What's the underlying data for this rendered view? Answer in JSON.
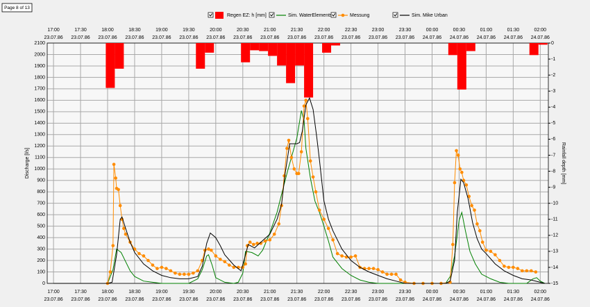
{
  "page_label": "Page 8 of 13",
  "chart_data": {
    "type": "line",
    "ylabel": "Discharge [l/s]",
    "y2label": "Rainfall depth [mm]",
    "xlim": [
      "23.07.86 16:53",
      "24.07.86 02:09"
    ],
    "xticks": [
      {
        "value": "23.07.86 17:00",
        "label": [
          "17:00",
          "23.07.86"
        ]
      },
      {
        "value": "23.07.86 17:30",
        "label": [
          "17:30",
          "23.07.86"
        ]
      },
      {
        "value": "23.07.86 18:00",
        "label": [
          "18:00",
          "23.07.86"
        ]
      },
      {
        "value": "23.07.86 18:30",
        "label": [
          "18:30",
          "23.07.86"
        ]
      },
      {
        "value": "23.07.86 19:00",
        "label": [
          "19:00",
          "23.07.86"
        ]
      },
      {
        "value": "23.07.86 19:30",
        "label": [
          "19:30",
          "23.07.86"
        ]
      },
      {
        "value": "23.07.86 20:00",
        "label": [
          "20:00",
          "23.07.86"
        ]
      },
      {
        "value": "23.07.86 20:30",
        "label": [
          "20:30",
          "23.07.86"
        ]
      },
      {
        "value": "23.07.86 21:00",
        "label": [
          "21:00",
          "23.07.86"
        ]
      },
      {
        "value": "23.07.86 21:30",
        "label": [
          "21:30",
          "23.07.86"
        ]
      },
      {
        "value": "23.07.86 22:00",
        "label": [
          "22:00",
          "23.07.86"
        ]
      },
      {
        "value": "23.07.86 22:30",
        "label": [
          "22:30",
          "23.07.86"
        ]
      },
      {
        "value": "23.07.86 23:00",
        "label": [
          "23:00",
          "23.07.86"
        ]
      },
      {
        "value": "23.07.86 23:30",
        "label": [
          "23:30",
          "23.07.86"
        ]
      },
      {
        "value": "24.07.86 00:00",
        "label": [
          "00:00",
          "24.07.86"
        ]
      },
      {
        "value": "24.07.86 00:30",
        "label": [
          "00:30",
          "24.07.86"
        ]
      },
      {
        "value": "24.07.86 01:00",
        "label": [
          "01:00",
          "24.07.86"
        ]
      },
      {
        "value": "24.07.86 01:30",
        "label": [
          "01:30",
          "24.07.86"
        ]
      },
      {
        "value": "24.07.86 02:00",
        "label": [
          "02:00",
          "24.07.86"
        ]
      }
    ],
    "ylim": [
      0,
      2100
    ],
    "yticks": [
      0,
      100,
      200,
      300,
      400,
      500,
      600,
      700,
      800,
      900,
      1000,
      1100,
      1200,
      1300,
      1400,
      1500,
      1600,
      1700,
      1800,
      1900,
      2000,
      2100
    ],
    "y2lim": [
      -15,
      0
    ],
    "y2ticks": [
      0,
      -1,
      -2,
      -3,
      -4,
      -5,
      -6,
      -7,
      -8,
      -9,
      -10,
      -11,
      -12,
      -13,
      -14,
      -15
    ],
    "grid": true,
    "legend": "top",
    "series": [
      {
        "name": "Regen EZ: h [mm]",
        "type": "bar",
        "axis": "y2",
        "color": "#ff0000",
        "x": [
          "23.07.86 17:58",
          "23.07.86 18:08",
          "23.07.86 19:38",
          "23.07.86 19:48",
          "23.07.86 20:28",
          "23.07.86 20:38",
          "23.07.86 20:48",
          "23.07.86 20:58",
          "23.07.86 21:08",
          "23.07.86 21:18",
          "23.07.86 21:28",
          "23.07.86 21:38",
          "23.07.86 21:58",
          "23.07.86 22:08",
          "24.07.86 00:18",
          "24.07.86 00:28",
          "24.07.86 00:38",
          "24.07.86 01:48",
          "24.07.86 01:58"
        ],
        "values": [
          -2.8,
          -1.6,
          -1.6,
          -0.6,
          -1.2,
          -0.45,
          -0.5,
          -0.8,
          -1.4,
          -2.5,
          -1.4,
          -3.4,
          -0.6,
          -0.15,
          -0.75,
          -2.9,
          -0.5,
          -0.75,
          -0.1
        ]
      },
      {
        "name": "Sim. WaterElements",
        "type": "line",
        "color": "#008000",
        "x": [
          "23.07.86 17:00",
          "23.07.86 18:00",
          "23.07.86 18:06",
          "23.07.86 18:10",
          "23.07.86 18:15",
          "23.07.86 18:20",
          "23.07.86 18:25",
          "23.07.86 18:30",
          "23.07.86 18:40",
          "23.07.86 18:50",
          "23.07.86 19:00",
          "23.07.86 19:30",
          "23.07.86 19:40",
          "23.07.86 19:45",
          "23.07.86 19:50",
          "23.07.86 19:52",
          "23.07.86 19:56",
          "23.07.86 20:00",
          "23.07.86 20:10",
          "23.07.86 20:20",
          "23.07.86 20:25",
          "23.07.86 20:30",
          "23.07.86 20:33",
          "23.07.86 20:40",
          "23.07.86 20:47",
          "23.07.86 20:52",
          "23.07.86 21:00",
          "23.07.86 21:08",
          "23.07.86 21:15",
          "23.07.86 21:20",
          "23.07.86 21:30",
          "23.07.86 21:35",
          "23.07.86 21:38",
          "23.07.86 21:40",
          "23.07.86 21:45",
          "23.07.86 21:50",
          "23.07.86 21:55",
          "23.07.86 22:00",
          "23.07.86 22:05",
          "23.07.86 22:10",
          "23.07.86 22:20",
          "23.07.86 22:30",
          "23.07.86 22:40",
          "23.07.86 22:50",
          "23.07.86 23:00",
          "24.07.86 00:15",
          "24.07.86 00:20",
          "24.07.86 00:25",
          "24.07.86 00:30",
          "24.07.86 00:33",
          "24.07.86 00:37",
          "24.07.86 00:42",
          "24.07.86 00:48",
          "24.07.86 00:55",
          "24.07.86 01:05",
          "24.07.86 01:15",
          "24.07.86 01:25",
          "24.07.86 01:45",
          "24.07.86 01:52",
          "24.07.86 01:56",
          "24.07.86 02:00",
          "24.07.86 02:05"
        ],
        "values": [
          0,
          0,
          120,
          300,
          270,
          190,
          110,
          60,
          20,
          10,
          0,
          0,
          40,
          120,
          240,
          250,
          160,
          50,
          10,
          0,
          10,
          90,
          280,
          270,
          240,
          290,
          440,
          620,
          840,
          990,
          1270,
          1510,
          1420,
          1180,
          920,
          720,
          620,
          500,
          370,
          230,
          130,
          70,
          30,
          10,
          0,
          0,
          60,
          240,
          550,
          620,
          460,
          280,
          170,
          80,
          40,
          10,
          0,
          0,
          40,
          50,
          20,
          0
        ]
      },
      {
        "name": "Messung",
        "type": "line",
        "marker": true,
        "color": "#ff8c00",
        "x": [
          "23.07.86 18:00",
          "23.07.86 18:03",
          "23.07.86 18:06",
          "23.07.86 18:07",
          "23.07.86 18:09",
          "23.07.86 18:10",
          "23.07.86 18:12",
          "23.07.86 18:14",
          "23.07.86 18:16",
          "23.07.86 18:18",
          "23.07.86 18:20",
          "23.07.86 18:25",
          "23.07.86 18:30",
          "23.07.86 18:35",
          "23.07.86 18:40",
          "23.07.86 18:45",
          "23.07.86 18:50",
          "23.07.86 18:55",
          "23.07.86 19:00",
          "23.07.86 19:05",
          "23.07.86 19:10",
          "23.07.86 19:15",
          "23.07.86 19:20",
          "23.07.86 19:25",
          "23.07.86 19:30",
          "23.07.86 19:35",
          "23.07.86 19:40",
          "23.07.86 19:45",
          "23.07.86 19:48",
          "23.07.86 19:52",
          "23.07.86 19:55",
          "23.07.86 20:00",
          "23.07.86 20:05",
          "23.07.86 20:10",
          "23.07.86 20:15",
          "23.07.86 20:20",
          "23.07.86 20:25",
          "23.07.86 20:30",
          "23.07.86 20:33",
          "23.07.86 20:35",
          "23.07.86 20:38",
          "23.07.86 20:42",
          "23.07.86 20:46",
          "23.07.86 20:50",
          "23.07.86 20:55",
          "23.07.86 21:00",
          "23.07.86 21:05",
          "23.07.86 21:10",
          "23.07.86 21:13",
          "23.07.86 21:16",
          "23.07.86 21:19",
          "23.07.86 21:21",
          "23.07.86 21:24",
          "23.07.86 21:27",
          "23.07.86 21:30",
          "23.07.86 21:32",
          "23.07.86 21:35",
          "23.07.86 21:38",
          "23.07.86 21:40",
          "23.07.86 21:42",
          "23.07.86 21:45",
          "23.07.86 21:48",
          "23.07.86 21:51",
          "23.07.86 21:55",
          "23.07.86 22:00",
          "23.07.86 22:05",
          "23.07.86 22:10",
          "23.07.86 22:15",
          "23.07.86 22:20",
          "23.07.86 22:25",
          "23.07.86 22:30",
          "23.07.86 22:35",
          "23.07.86 22:40",
          "23.07.86 22:45",
          "23.07.86 22:50",
          "23.07.86 22:55",
          "23.07.86 23:00",
          "23.07.86 23:05",
          "23.07.86 23:10",
          "23.07.86 23:15",
          "23.07.86 23:20",
          "23.07.86 23:25",
          "23.07.86 23:30",
          "23.07.86 23:40",
          "23.07.86 23:50",
          "24.07.86 00:00",
          "24.07.86 00:10",
          "24.07.86 00:20",
          "24.07.86 00:23",
          "24.07.86 00:25",
          "24.07.86 00:27",
          "24.07.86 00:29",
          "24.07.86 00:31",
          "24.07.86 00:33",
          "24.07.86 00:35",
          "24.07.86 00:38",
          "24.07.86 00:41",
          "24.07.86 00:44",
          "24.07.86 00:47",
          "24.07.86 00:50",
          "24.07.86 00:53",
          "24.07.86 00:56",
          "24.07.86 01:00",
          "24.07.86 01:05",
          "24.07.86 01:10",
          "24.07.86 01:15",
          "24.07.86 01:20",
          "24.07.86 01:25",
          "24.07.86 01:30",
          "24.07.86 01:35",
          "24.07.86 01:40",
          "24.07.86 01:45",
          "24.07.86 01:50",
          "24.07.86 01:55"
        ],
        "values": [
          0,
          100,
          330,
          1040,
          920,
          830,
          820,
          680,
          560,
          480,
          430,
          360,
          300,
          260,
          240,
          200,
          160,
          130,
          140,
          130,
          110,
          90,
          80,
          80,
          80,
          90,
          110,
          200,
          290,
          300,
          290,
          240,
          210,
          190,
          160,
          140,
          140,
          140,
          170,
          330,
          360,
          340,
          350,
          350,
          370,
          380,
          430,
          520,
          680,
          940,
          1180,
          1250,
          1100,
          1000,
          960,
          960,
          1150,
          1550,
          1600,
          1440,
          1070,
          930,
          800,
          640,
          560,
          480,
          380,
          260,
          240,
          230,
          230,
          240,
          140,
          130,
          130,
          130,
          120,
          100,
          80,
          80,
          80,
          30,
          10,
          0,
          0,
          0,
          0,
          10,
          340,
          880,
          1160,
          1120,
          1000,
          970,
          900,
          860,
          760,
          680,
          640,
          520,
          460,
          360,
          290,
          280,
          250,
          200,
          150,
          140,
          140,
          130,
          110,
          110,
          110,
          100
        ]
      },
      {
        "name": "Sim. Mike Urban",
        "type": "line",
        "color": "#000000",
        "x": [
          "23.07.86 17:00",
          "23.07.86 18:00",
          "23.07.86 18:05",
          "23.07.86 18:10",
          "23.07.86 18:14",
          "23.07.86 18:16",
          "23.07.86 18:20",
          "23.07.86 18:25",
          "23.07.86 18:30",
          "23.07.86 18:40",
          "23.07.86 18:50",
          "23.07.86 19:00",
          "23.07.86 19:10",
          "23.07.86 19:20",
          "23.07.86 19:30",
          "23.07.86 19:40",
          "23.07.86 19:45",
          "23.07.86 19:50",
          "23.07.86 19:54",
          "23.07.86 20:00",
          "23.07.86 20:05",
          "23.07.86 20:10",
          "23.07.86 20:20",
          "23.07.86 20:28",
          "23.07.86 20:32",
          "23.07.86 20:36",
          "23.07.86 20:43",
          "23.07.86 20:50",
          "23.07.86 21:00",
          "23.07.86 21:08",
          "23.07.86 21:13",
          "23.07.86 21:17",
          "23.07.86 21:22",
          "23.07.86 21:30",
          "23.07.86 21:33",
          "23.07.86 21:36",
          "23.07.86 21:40",
          "23.07.86 21:44",
          "23.07.86 21:48",
          "23.07.86 21:52",
          "23.07.86 21:55",
          "23.07.86 22:00",
          "23.07.86 22:05",
          "23.07.86 22:10",
          "23.07.86 22:20",
          "23.07.86 22:30",
          "23.07.86 22:40",
          "23.07.86 22:50",
          "23.07.86 23:00",
          "23.07.86 23:10",
          "23.07.86 23:20",
          "23.07.86 23:30",
          "24.07.86 00:15",
          "24.07.86 00:20",
          "24.07.86 00:25",
          "24.07.86 00:28",
          "24.07.86 00:32",
          "24.07.86 00:35",
          "24.07.86 00:40",
          "24.07.86 00:45",
          "24.07.86 00:50",
          "24.07.86 00:55",
          "24.07.86 01:00",
          "24.07.86 01:10",
          "24.07.86 01:20",
          "24.07.86 01:30",
          "24.07.86 01:40",
          "24.07.86 01:50",
          "24.07.86 02:00",
          "24.07.86 02:05"
        ],
        "values": [
          0,
          0,
          10,
          250,
          560,
          580,
          480,
          360,
          270,
          170,
          110,
          70,
          50,
          40,
          40,
          60,
          150,
          350,
          440,
          400,
          330,
          250,
          160,
          110,
          220,
          340,
          310,
          360,
          430,
          560,
          690,
          960,
          1220,
          1220,
          1230,
          1330,
          1560,
          1620,
          1520,
          1280,
          1080,
          720,
          560,
          460,
          300,
          200,
          140,
          100,
          70,
          40,
          20,
          0,
          0,
          20,
          200,
          620,
          910,
          880,
          740,
          530,
          390,
          300,
          260,
          170,
          110,
          70,
          40,
          30,
          10,
          0
        ]
      }
    ]
  }
}
